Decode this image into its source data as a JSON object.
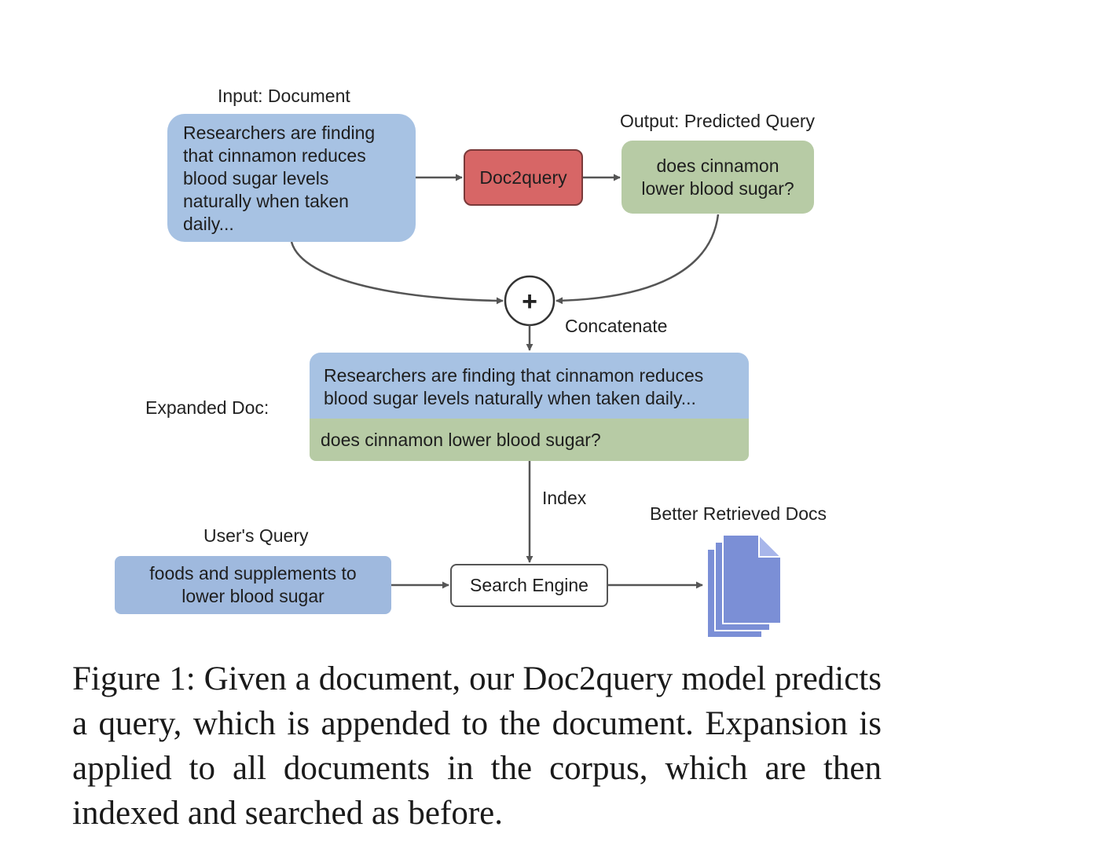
{
  "labels": {
    "input": "Input: Document",
    "output": "Output: Predicted Query",
    "concatenate": "Concatenate",
    "expanded": "Expanded Doc:",
    "index": "Index",
    "users_query": "User's Query",
    "better_docs": "Better Retrieved Docs"
  },
  "boxes": {
    "input_document_lines": [
      "Researchers are finding",
      "that cinnamon reduces",
      "blood sugar levels",
      "naturally when taken",
      "daily..."
    ],
    "model": "Doc2query",
    "predicted_query_lines": [
      "does cinnamon",
      "lower blood sugar?"
    ],
    "expanded_document_lines": [
      "Researchers are finding that cinnamon reduces",
      "blood sugar levels naturally when taken daily..."
    ],
    "expanded_query": "does cinnamon lower blood sugar?",
    "user_query_lines": [
      "foods and supplements to",
      "lower blood sugar"
    ],
    "search_engine": "Search Engine"
  },
  "concat_symbol": "+",
  "caption": "Figure 1:  Given a document, our Doc2query model predicts a query, which is appended to the document. Expansion is applied to all documents in the corpus, which are then indexed and searched as before.",
  "colors": {
    "document": "#a7c2e3",
    "query": "#b7cba5",
    "model": "#d76666",
    "user_query": "#9fb9de",
    "docs_icon": "#7b8fd6"
  }
}
